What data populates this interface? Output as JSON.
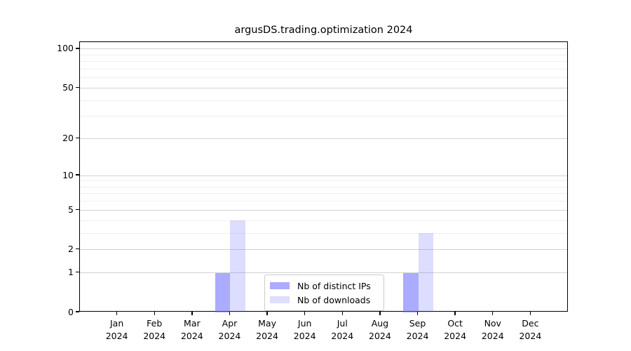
{
  "chart_data": {
    "type": "bar",
    "title": "argusDS.trading.optimization 2024",
    "categories": [
      "Jan 2024",
      "Feb 2024",
      "Mar 2024",
      "Apr 2024",
      "May 2024",
      "Jun 2024",
      "Jul 2024",
      "Aug 2024",
      "Sep 2024",
      "Oct 2024",
      "Nov 2024",
      "Dec 2024"
    ],
    "x_tick_line1": [
      "Jan",
      "Feb",
      "Mar",
      "Apr",
      "May",
      "Jun",
      "Jul",
      "Aug",
      "Sep",
      "Oct",
      "Nov",
      "Dec"
    ],
    "x_tick_line2": [
      "2024",
      "2024",
      "2024",
      "2024",
      "2024",
      "2024",
      "2024",
      "2024",
      "2024",
      "2024",
      "2024",
      "2024"
    ],
    "series": [
      {
        "name": "Nb of distinct IPs",
        "color": "rgba(102,102,255,0.55)",
        "values": [
          0,
          0,
          0,
          1,
          0,
          0,
          0,
          0,
          1,
          0,
          0,
          0
        ]
      },
      {
        "name": "Nb of downloads",
        "color": "rgba(102,102,255,0.22)",
        "values": [
          0,
          0,
          0,
          4,
          0,
          0,
          0,
          0,
          3,
          0,
          0,
          0
        ]
      }
    ],
    "xlabel": "",
    "ylabel": "",
    "yscale": "log1p",
    "ylim": [
      0,
      113
    ],
    "y_major_ticks": [
      0,
      1,
      2,
      5,
      10,
      20,
      50,
      100
    ],
    "y_minor_ticks": [
      3,
      4,
      6,
      7,
      8,
      9,
      30,
      40,
      60,
      70,
      80,
      90
    ],
    "grid": "horizontal, major and minor",
    "grid_major_color": "#d2d2d2",
    "grid_minor_color": "#efefef",
    "legend_position": "lower center inside plot",
    "background_color": "#ffffff",
    "spine_color": "#000000"
  }
}
